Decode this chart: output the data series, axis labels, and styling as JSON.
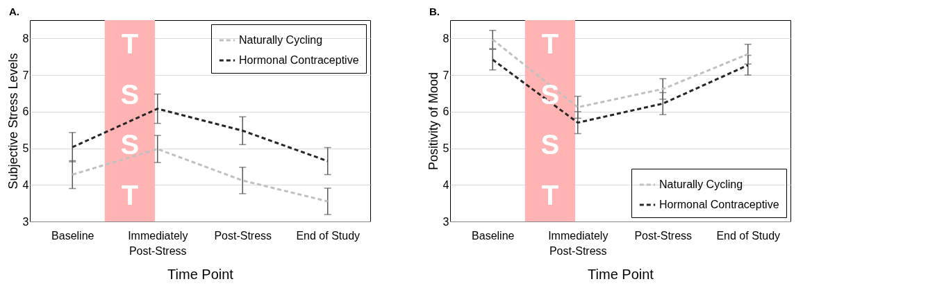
{
  "chart_data": [
    {
      "type": "line",
      "title": "A.",
      "xlabel": "Time Point",
      "ylabel": "Subjective Stress Levels",
      "categories": [
        "Baseline",
        "Immediately Post-Stress",
        "Post-Stress",
        "End of Study"
      ],
      "series": [
        {
          "name": "Naturally Cycling",
          "color": "#c0c0c0",
          "values": [
            4.28,
            4.98,
            4.12,
            3.55
          ],
          "errors": [
            0.38,
            0.37,
            0.36,
            0.36
          ]
        },
        {
          "name": "Hormonal Contraceptive",
          "color": "#262626",
          "values": [
            5.03,
            6.08,
            5.48,
            4.65
          ],
          "errors": [
            0.4,
            0.4,
            0.38,
            0.37
          ]
        }
      ],
      "ylim": [
        3,
        8.5
      ],
      "yticks": [
        3,
        4,
        5,
        6,
        7,
        8
      ],
      "grid": "y",
      "legend": "top right",
      "marker": "none",
      "line_style": "dashed",
      "annotations": [
        "TSST"
      ]
    },
    {
      "type": "line",
      "title": "B.",
      "xlabel": "Time Point",
      "ylabel": "Positivity of Mood",
      "categories": [
        "Baseline",
        "Immediately Post-Stress",
        "Post-Stress",
        "End of Study"
      ],
      "series": [
        {
          "name": "Naturally Cycling",
          "color": "#c0c0c0",
          "values": [
            7.97,
            6.12,
            6.62,
            7.57
          ],
          "errors": [
            0.25,
            0.3,
            0.28,
            0.27
          ]
        },
        {
          "name": "Hormonal Contraceptive",
          "color": "#262626",
          "values": [
            7.42,
            5.7,
            6.22,
            7.27
          ],
          "errors": [
            0.28,
            0.3,
            0.3,
            0.27
          ]
        }
      ],
      "ylim": [
        3,
        8.5
      ],
      "yticks": [
        3,
        4,
        5,
        6,
        7,
        8
      ],
      "grid": "y",
      "legend": "bottom right",
      "marker": "none",
      "line_style": "dashed",
      "annotations": [
        "TSST"
      ]
    }
  ]
}
